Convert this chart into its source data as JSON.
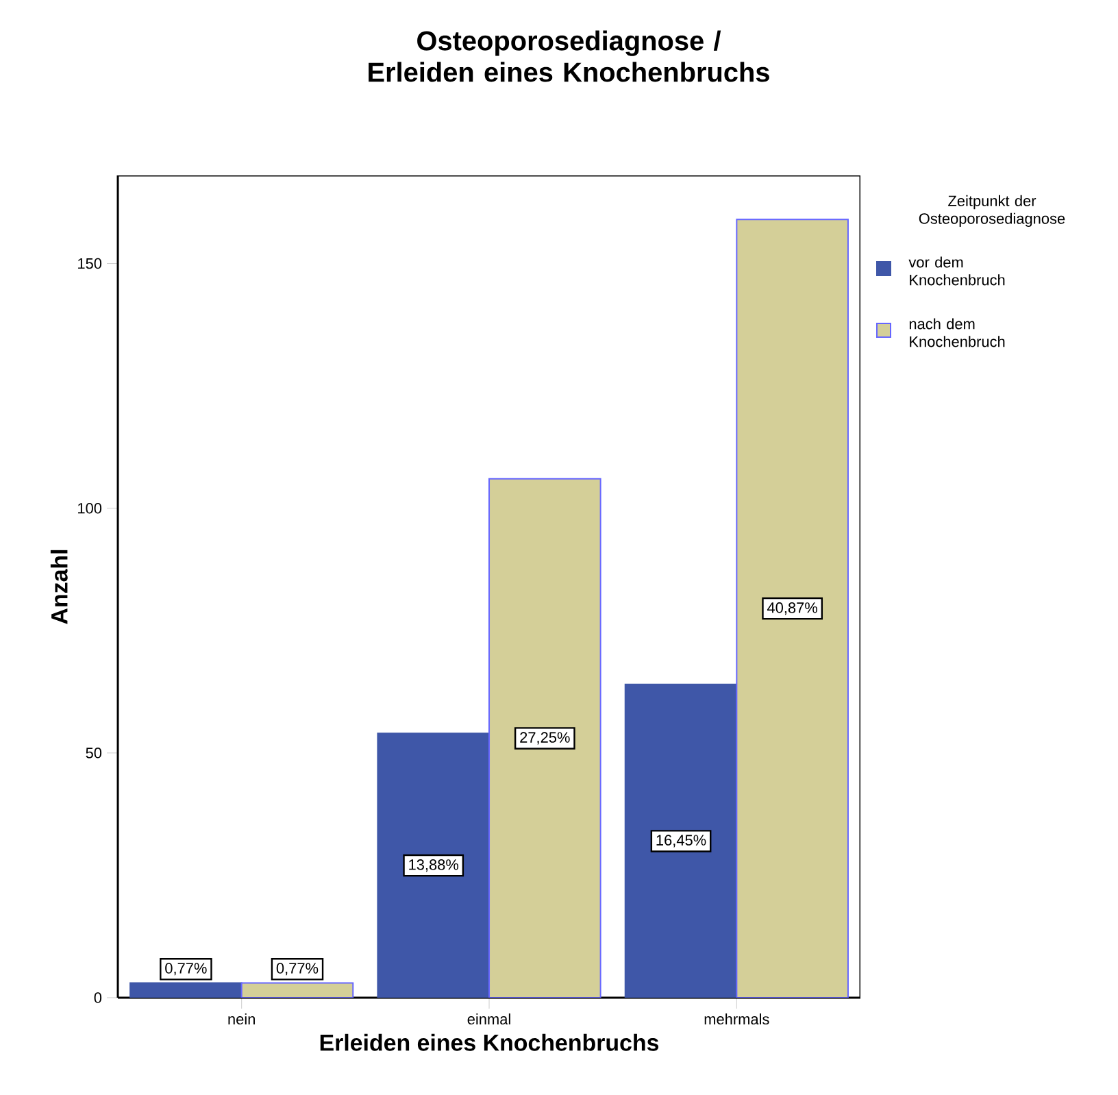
{
  "chart_data": {
    "type": "bar",
    "title": "Osteoporosediagnose / Erleiden eines Knochenbruchs",
    "xlabel": "Erleiden eines Knochenbruchs",
    "ylabel": "Anzahl",
    "legend_title": "Zeitpunkt der Osteoporosediagnose",
    "legend": "right",
    "categories": [
      "nein",
      "einmal",
      "mehrmals"
    ],
    "series": [
      {
        "name": "vor dem Knochenbruch",
        "color": "#3f57a8",
        "values": [
          3,
          54,
          64
        ]
      },
      {
        "name": "nach dem Knochenbruch",
        "color": "#d4cf98",
        "values": [
          3,
          106,
          159
        ]
      }
    ],
    "annotations": [
      "0,77%",
      "13,88%",
      "16,45%",
      "0,77%",
      "27,25%",
      "40,87%"
    ],
    "ylim": [
      0,
      168
    ],
    "yticks": [
      0,
      50,
      100,
      150
    ]
  }
}
